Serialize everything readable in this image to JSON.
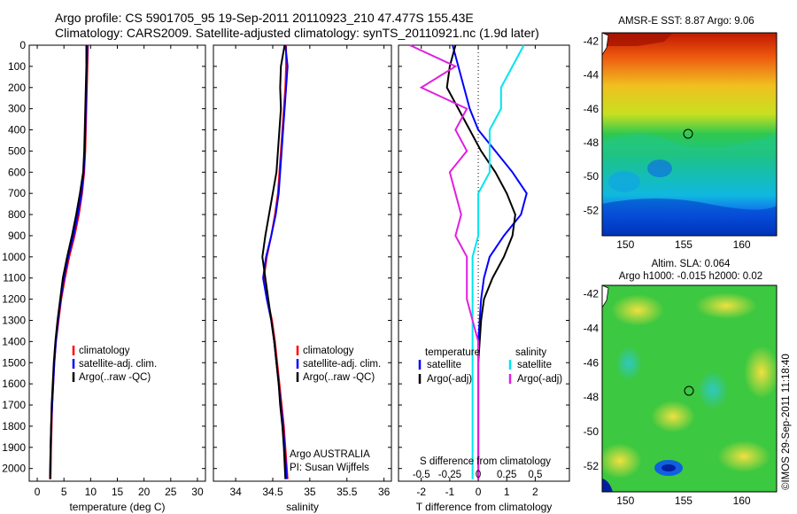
{
  "header": {
    "line1": "Argo profile: CS 5901705_95 19-Sep-2011 20110923_210 47.477S 155.43E",
    "line2": "Climatology: CARS2009. Satellite-adjusted climatology: synTS_20110921.nc (1.9d later)"
  },
  "credit": "©IMOS 29-Sep-2011 11:18:40",
  "colors": {
    "climatology": "#ff0000",
    "satellite": "#0000ff",
    "argo": "#000000",
    "sal_satellite": "#00e5ee",
    "sal_argo": "#e020e0"
  },
  "depth_axis": {
    "ticks": [
      0,
      100,
      200,
      300,
      400,
      500,
      600,
      700,
      800,
      900,
      1000,
      1100,
      1200,
      1300,
      1400,
      1500,
      1600,
      1700,
      1800,
      1900,
      2000
    ],
    "range": [
      0,
      2060
    ]
  },
  "chart_data": [
    {
      "type": "line",
      "xlabel": "temperature (deg C)",
      "xticks": [
        0,
        5,
        10,
        15,
        20,
        25,
        30
      ],
      "xlim": [
        -1.5,
        31.5
      ],
      "legend": [
        "climatology",
        "satellite-adj. clim.",
        "Argo(..raw -QC)"
      ],
      "series": [
        {
          "name": "climatology",
          "color": "#ff0000",
          "x": [
            9.5,
            9.4,
            9.3,
            9.2,
            9.1,
            9.0,
            8.8,
            8.4,
            7.8,
            7.0,
            6.0,
            5.2,
            4.5,
            4.0,
            3.5,
            3.2,
            3.0,
            2.8,
            2.7,
            2.6,
            2.5
          ],
          "depth": [
            0,
            100,
            200,
            300,
            400,
            500,
            600,
            700,
            800,
            900,
            1000,
            1100,
            1200,
            1300,
            1400,
            1500,
            1600,
            1700,
            1800,
            1900,
            2050
          ]
        },
        {
          "name": "satellite-adj. clim.",
          "color": "#0000ff",
          "x": [
            9.4,
            9.3,
            9.2,
            9.1,
            9.0,
            8.9,
            8.7,
            8.3,
            7.6,
            6.8,
            5.8,
            5.0,
            4.4,
            3.9,
            3.5,
            3.2,
            3.0,
            2.8,
            2.6,
            2.5,
            2.4
          ],
          "depth": [
            0,
            100,
            200,
            300,
            400,
            500,
            600,
            700,
            800,
            900,
            1000,
            1100,
            1200,
            1300,
            1400,
            1500,
            1600,
            1700,
            1800,
            1900,
            2050
          ]
        },
        {
          "name": "Argo(..raw -QC)",
          "color": "#000000",
          "x": [
            9.2,
            9.2,
            9.1,
            9.0,
            8.9,
            8.8,
            8.6,
            8.0,
            7.3,
            6.5,
            5.6,
            4.8,
            4.3,
            3.8,
            3.4,
            3.1,
            2.9,
            2.7,
            2.6,
            2.5,
            2.4
          ],
          "depth": [
            0,
            100,
            200,
            300,
            400,
            500,
            600,
            700,
            800,
            900,
            1000,
            1100,
            1200,
            1300,
            1400,
            1500,
            1600,
            1700,
            1800,
            1900,
            2050
          ]
        }
      ]
    },
    {
      "type": "line",
      "xlabel": "salinity",
      "xticks": [
        34,
        34.5,
        35,
        35.5,
        36
      ],
      "xlim": [
        33.7,
        36.1
      ],
      "legend": [
        "climatology",
        "satellite-adj. clim.",
        "Argo(..raw -QC)"
      ],
      "annotation": [
        "Argo AUSTRALIA",
        "PI: Susan Wijffels"
      ],
      "series": [
        {
          "name": "climatology",
          "color": "#ff0000",
          "x": [
            34.68,
            34.68,
            34.67,
            34.65,
            34.63,
            34.61,
            34.59,
            34.57,
            34.53,
            34.48,
            34.42,
            34.38,
            34.43,
            34.49,
            34.53,
            34.56,
            34.59,
            34.62,
            34.65,
            34.67,
            34.7
          ],
          "depth": [
            0,
            100,
            200,
            300,
            400,
            500,
            600,
            700,
            800,
            900,
            1000,
            1100,
            1200,
            1300,
            1400,
            1500,
            1600,
            1700,
            1800,
            1900,
            2050
          ]
        },
        {
          "name": "satellite-adj. clim.",
          "color": "#0000ff",
          "x": [
            34.67,
            34.7,
            34.68,
            34.66,
            34.64,
            34.62,
            34.6,
            34.58,
            34.54,
            34.48,
            34.41,
            34.37,
            34.42,
            34.48,
            34.52,
            34.55,
            34.58,
            34.61,
            34.64,
            34.66,
            34.69
          ],
          "depth": [
            0,
            100,
            200,
            300,
            400,
            500,
            600,
            700,
            800,
            900,
            1000,
            1100,
            1200,
            1300,
            1400,
            1500,
            1600,
            1700,
            1800,
            1900,
            2050
          ]
        },
        {
          "name": "Argo(..raw -QC)",
          "color": "#000000",
          "x": [
            34.66,
            34.61,
            34.6,
            34.61,
            34.59,
            34.57,
            34.55,
            34.5,
            34.45,
            34.4,
            34.36,
            34.4,
            34.44,
            34.48,
            34.52,
            34.55,
            34.58,
            34.6,
            34.63,
            34.65,
            34.67
          ],
          "depth": [
            0,
            100,
            200,
            300,
            400,
            500,
            600,
            700,
            800,
            900,
            1000,
            1100,
            1200,
            1300,
            1400,
            1500,
            1600,
            1700,
            1800,
            1900,
            2050
          ]
        }
      ]
    },
    {
      "type": "line",
      "xlabel": "T difference from climatology",
      "xlabel_top": "S difference from climatology",
      "xticks": [
        -2,
        -1,
        0,
        1,
        2
      ],
      "xticks_top": [
        "-0.5",
        "-0.25",
        "0",
        "0.25",
        "0.5"
      ],
      "xlim": [
        -2.8,
        3.2
      ],
      "legend_titles": [
        "temperature",
        "salinity"
      ],
      "legend": [
        "satellite",
        "Argo(-adj)",
        "satellite",
        "Argo(-adj)"
      ],
      "series": [
        {
          "name": "satellite",
          "color": "#0000ff",
          "x": [
            -0.9,
            -0.7,
            -0.5,
            -0.3,
            0.0,
            0.6,
            1.2,
            1.7,
            1.5,
            0.9,
            0.4,
            0.2,
            0.1,
            0.05,
            0.0,
            0.0,
            0.0,
            0.0,
            0.0,
            0.0,
            0.0
          ],
          "depth": [
            0,
            100,
            200,
            300,
            400,
            500,
            600,
            700,
            800,
            900,
            1000,
            1100,
            1200,
            1300,
            1400,
            1500,
            1600,
            1700,
            1800,
            1900,
            2050
          ]
        },
        {
          "name": "Argo(-adj)",
          "color": "#000000",
          "x": [
            -0.8,
            -1.0,
            -1.1,
            -0.7,
            -0.3,
            0.1,
            0.6,
            1.0,
            1.3,
            1.2,
            0.9,
            0.5,
            0.2,
            0.1,
            0.05,
            0.0,
            0.0,
            0.0,
            0.0,
            0.0,
            0.0
          ],
          "depth": [
            0,
            100,
            200,
            300,
            400,
            500,
            600,
            700,
            800,
            900,
            1000,
            1100,
            1200,
            1300,
            1400,
            1500,
            1600,
            1700,
            1800,
            1900,
            2050
          ]
        },
        {
          "name": "satellite",
          "color": "#00e5ee",
          "x": [
            0.4,
            0.3,
            0.2,
            0.2,
            0.1,
            0.1,
            0.1,
            0.0,
            0.0,
            0.0,
            -0.05,
            -0.05,
            -0.05,
            -0.05,
            -0.05,
            -0.05,
            -0.05,
            -0.05,
            -0.05,
            -0.05,
            -0.05
          ],
          "depth": [
            0,
            100,
            200,
            300,
            400,
            500,
            600,
            700,
            800,
            900,
            1000,
            1100,
            1200,
            1300,
            1400,
            1500,
            1600,
            1700,
            1800,
            1900,
            2050
          ]
        },
        {
          "name": "Argo(-adj)",
          "color": "#e020e0",
          "x": [
            -0.6,
            -0.2,
            -0.5,
            -0.1,
            -0.2,
            -0.1,
            -0.25,
            -0.2,
            -0.15,
            -0.2,
            -0.1,
            -0.1,
            -0.1,
            -0.05,
            0.0,
            0.0,
            0.0,
            0.0,
            0.0,
            0.0,
            0.0
          ],
          "depth": [
            0,
            100,
            200,
            300,
            400,
            500,
            600,
            700,
            800,
            900,
            1000,
            1100,
            1200,
            1300,
            1400,
            1500,
            1600,
            1700,
            1800,
            1900,
            2050
          ]
        }
      ]
    },
    {
      "type": "heatmap",
      "title": "AMSR-E SST: 8.87 Argo: 9.06",
      "xticks": [
        150,
        155,
        160
      ],
      "yticks": [
        -42,
        -44,
        -46,
        -48,
        -50,
        -52
      ],
      "xlim": [
        148,
        163
      ],
      "ylim": [
        -53.5,
        -41.5
      ],
      "marker": {
        "lon": 155.43,
        "lat": -47.477
      }
    },
    {
      "type": "heatmap",
      "title_lines": [
        "Altim. SLA: 0.064",
        "Argo h1000: -0.015 h2000: 0.02"
      ],
      "xticks": [
        150,
        155,
        160
      ],
      "yticks": [
        -42,
        -44,
        -46,
        -48,
        -50,
        -52
      ],
      "xlim": [
        148,
        163
      ],
      "ylim": [
        -53.5,
        -41.5
      ],
      "marker": {
        "lon": 155.43,
        "lat": -47.477
      }
    }
  ]
}
